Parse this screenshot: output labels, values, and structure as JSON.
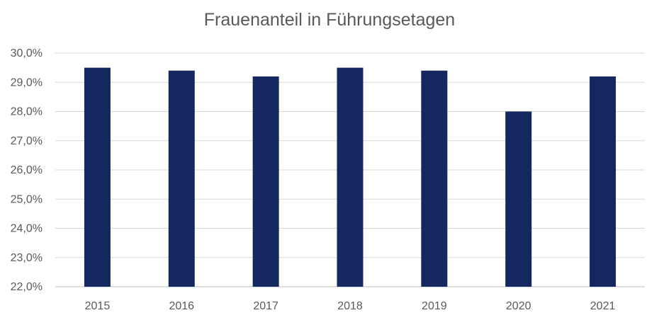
{
  "chart_data": {
    "type": "bar",
    "title": "Frauenanteil in Führungsetagen",
    "categories": [
      "2015",
      "2016",
      "2017",
      "2018",
      "2019",
      "2020",
      "2021"
    ],
    "values": [
      29.5,
      29.4,
      29.2,
      29.5,
      29.4,
      28.0,
      29.2
    ],
    "unit": "%",
    "ylim": [
      22,
      30
    ],
    "yticks": [
      22,
      23,
      24,
      25,
      26,
      27,
      28,
      29,
      30
    ],
    "ytick_labels": [
      "22,0%",
      "23,0%",
      "24,0%",
      "25,0%",
      "26,0%",
      "27,0%",
      "28,0%",
      "29,0%",
      "30,0%"
    ],
    "xlabel": "",
    "ylabel": "",
    "grid": true,
    "legend": "none",
    "bar_color": "#14285F",
    "gridline_color": "#D9D9D9",
    "text_color": "#595959"
  }
}
